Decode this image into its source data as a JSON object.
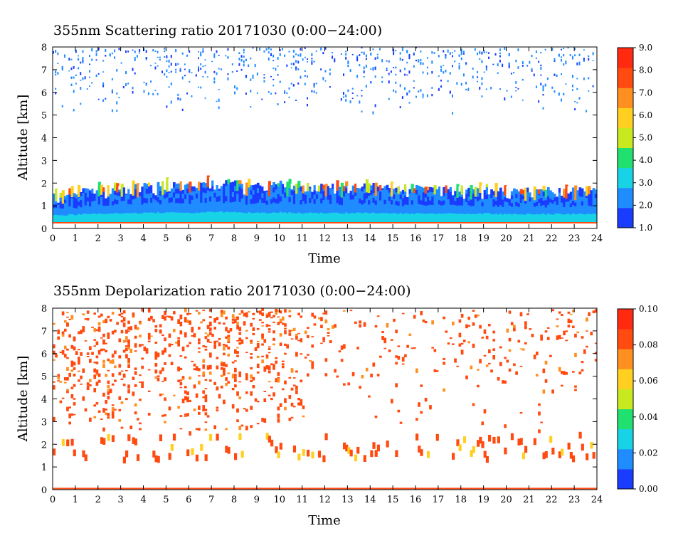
{
  "chart_data": [
    {
      "type": "heatmap",
      "title": "355nm Scattering ratio  20171030 (0:00−24:00)",
      "xlabel": "Time",
      "ylabel": "Altitude [km]",
      "xlim": [
        0,
        24
      ],
      "ylim": [
        0,
        8
      ],
      "x_ticks": [
        "0",
        "1",
        "2",
        "3",
        "4",
        "5",
        "6",
        "7",
        "8",
        "9",
        "10",
        "11",
        "12",
        "13",
        "14",
        "15",
        "16",
        "17",
        "18",
        "19",
        "20",
        "21",
        "22",
        "23",
        "24"
      ],
      "y_ticks": [
        "0",
        "1",
        "2",
        "3",
        "4",
        "5",
        "6",
        "7",
        "8"
      ],
      "colorbar": {
        "range": [
          1.0,
          9.0
        ],
        "ticks": [
          "1.0",
          "2.0",
          "3.0",
          "4.0",
          "5.0",
          "6.0",
          "7.0",
          "8.0",
          "9.0"
        ]
      },
      "colormap": [
        "#1a3cff",
        "#1f8cff",
        "#18d2e6",
        "#20e070",
        "#c8e820",
        "#ffd020",
        "#ff9020",
        "#ff4a10",
        "#ff2a10"
      ],
      "features": {
        "boundary_layer_top_km": [
          1.5,
          1.6,
          1.8,
          1.8,
          1.9,
          2.0,
          1.9,
          2.1,
          2.0,
          1.9,
          2.0,
          1.9,
          1.9,
          1.9,
          1.9,
          1.8,
          1.8,
          1.8,
          1.8,
          1.8,
          1.7,
          1.7,
          1.7,
          1.7,
          1.7
        ],
        "upper_layer_km": [
          5.0,
          8.0
        ]
      }
    },
    {
      "type": "heatmap",
      "title": "355nm Depolarization ratio  20171030 (0:00−24:00)",
      "xlabel": "Time",
      "ylabel": "Altitude [km]",
      "xlim": [
        0,
        24
      ],
      "ylim": [
        0,
        8
      ],
      "x_ticks": [
        "0",
        "1",
        "2",
        "3",
        "4",
        "5",
        "6",
        "7",
        "8",
        "9",
        "10",
        "11",
        "12",
        "13",
        "14",
        "15",
        "16",
        "17",
        "18",
        "19",
        "20",
        "21",
        "22",
        "23",
        "24"
      ],
      "y_ticks": [
        "0",
        "1",
        "2",
        "3",
        "4",
        "5",
        "6",
        "7",
        "8"
      ],
      "colorbar": {
        "range": [
          0.0,
          0.1
        ],
        "ticks": [
          "0.00",
          "0.02",
          "0.04",
          "0.06",
          "0.08",
          "0.10"
        ]
      },
      "colormap": [
        "#1a3cff",
        "#1f8cff",
        "#18d2e6",
        "#20e070",
        "#c8e820",
        "#ffd020",
        "#ff9020",
        "#ff4a10",
        "#ff2a10"
      ],
      "features": {
        "aerosol_layer_km": [
          1.0,
          2.4
        ],
        "upper_layer_km": [
          2.5,
          8.0
        ]
      }
    }
  ]
}
